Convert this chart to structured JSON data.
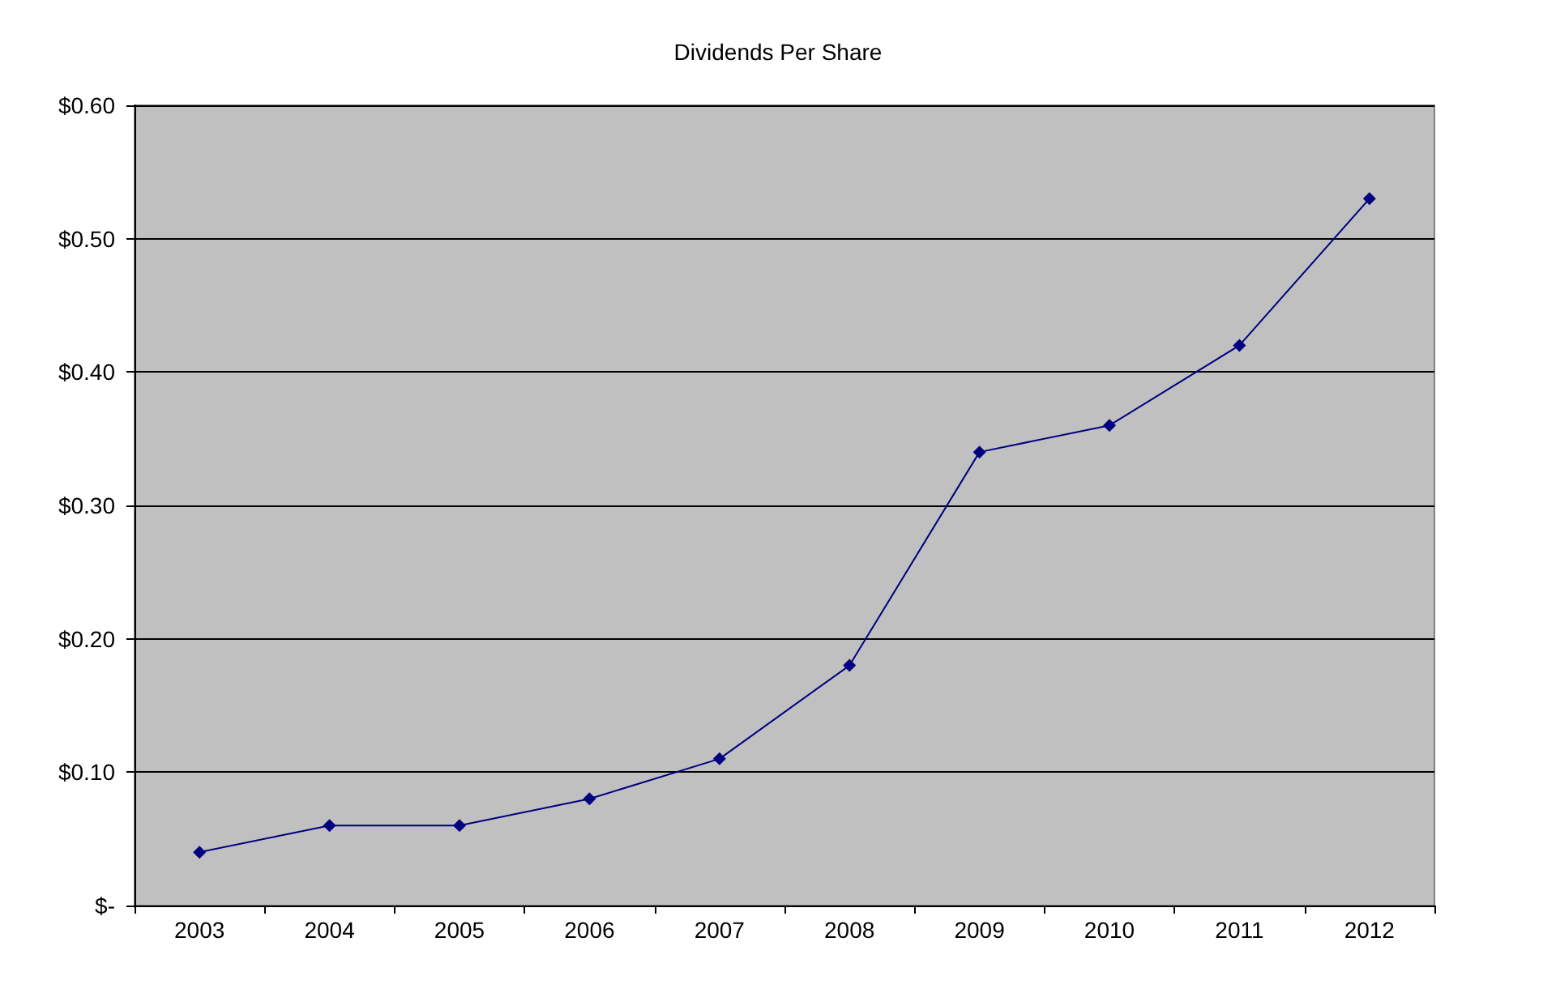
{
  "chart_data": {
    "type": "line",
    "title": "Dividends Per Share",
    "categories": [
      "2003",
      "2004",
      "2005",
      "2006",
      "2007",
      "2008",
      "2009",
      "2010",
      "2011",
      "2012"
    ],
    "series": [
      {
        "color": "#000080",
        "values": [
          0.04,
          0.06,
          0.06,
          0.08,
          0.11,
          0.18,
          0.34,
          0.36,
          0.42,
          0.53
        ]
      }
    ],
    "ylim": [
      0,
      0.6
    ],
    "yticks": [
      {
        "value": 0,
        "label": "$-"
      },
      {
        "value": 0.1,
        "label": "$0.10"
      },
      {
        "value": 0.2,
        "label": "$0.20"
      },
      {
        "value": 0.3,
        "label": "$0.30"
      },
      {
        "value": 0.4,
        "label": "$0.40"
      },
      {
        "value": 0.5,
        "label": "$0.50"
      },
      {
        "value": 0.6,
        "label": "$0.60"
      }
    ],
    "grid": "y",
    "marker": "diamond",
    "line_style": "solid"
  }
}
